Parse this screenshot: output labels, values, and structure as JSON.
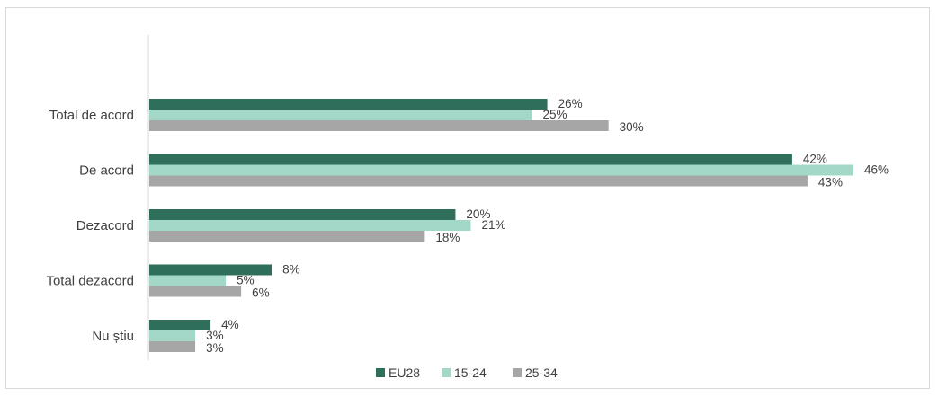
{
  "chart_data": {
    "type": "bar",
    "orientation": "horizontal",
    "categories": [
      "Total de acord",
      "De acord",
      "Dezacord",
      "Total dezacord",
      "Nu știu"
    ],
    "series": [
      {
        "name": "EU28",
        "color": "#2e6e5a",
        "values": [
          26,
          42,
          20,
          8,
          4
        ],
        "labels": [
          "26%",
          "42%",
          "20%",
          "8%",
          "4%"
        ]
      },
      {
        "name": "15-24",
        "color": "#a3d8c8",
        "values": [
          25,
          46,
          21,
          5,
          3
        ],
        "labels": [
          "25%",
          "46%",
          "21%",
          "5%",
          "3%"
        ]
      },
      {
        "name": "25-34",
        "color": "#a6a6a6",
        "values": [
          30,
          43,
          18,
          6,
          3
        ],
        "labels": [
          "30%",
          "43%",
          "18%",
          "6%",
          "3%"
        ]
      }
    ],
    "xlim": [
      0,
      46
    ],
    "grid": false,
    "legend_position": "bottom"
  }
}
